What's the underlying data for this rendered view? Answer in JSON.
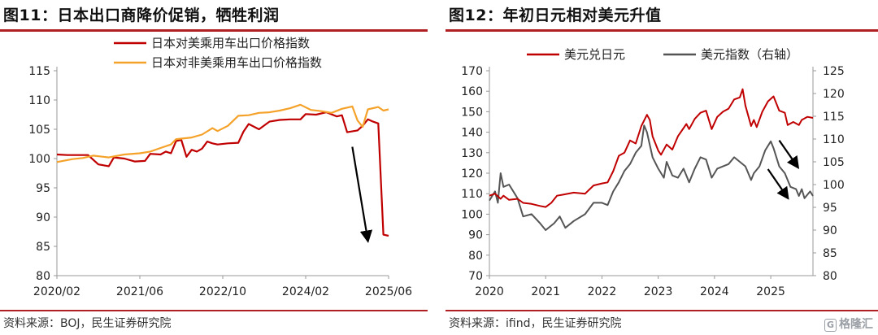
{
  "left": {
    "title": "图11：日本出口商降价促销，牺牲利润",
    "source": "资料来源：BOJ，民生证券研究院",
    "chart_data": {
      "type": "line",
      "ylim": [
        80,
        115
      ],
      "yticks": [
        80,
        85,
        90,
        95,
        100,
        105,
        110,
        115
      ],
      "xticks": [
        "2020/02",
        "2021/06",
        "2022/10",
        "2024/02",
        "2025/06"
      ],
      "xrange": [
        "2020-02",
        "2025-06"
      ],
      "legend": "top",
      "series": [
        {
          "name": "日本对美乘用车出口价格指数",
          "color": "#c00000",
          "points": [
            [
              "2020-02",
              100.7
            ],
            [
              "2020-04",
              100.6
            ],
            [
              "2020-06",
              100.6
            ],
            [
              "2020-08",
              100.6
            ],
            [
              "2020-10",
              99.0
            ],
            [
              "2020-12",
              98.7
            ],
            [
              "2021-01",
              100.2
            ],
            [
              "2021-03",
              100.0
            ],
            [
              "2021-05",
              99.5
            ],
            [
              "2021-07",
              99.6
            ],
            [
              "2021-08",
              100.8
            ],
            [
              "2021-10",
              100.7
            ],
            [
              "2021-11",
              101.2
            ],
            [
              "2021-12",
              100.9
            ],
            [
              "2022-01",
              103.0
            ],
            [
              "2022-02",
              103.2
            ],
            [
              "2022-03",
              100.3
            ],
            [
              "2022-04",
              101.5
            ],
            [
              "2022-05",
              101.2
            ],
            [
              "2022-06",
              101.7
            ],
            [
              "2022-07",
              102.9
            ],
            [
              "2022-08",
              102.6
            ],
            [
              "2022-09",
              102.4
            ],
            [
              "2022-11",
              102.6
            ],
            [
              "2023-01",
              102.7
            ],
            [
              "2023-02",
              104.6
            ],
            [
              "2023-03",
              105.9
            ],
            [
              "2023-05",
              105.0
            ],
            [
              "2023-07",
              106.3
            ],
            [
              "2023-09",
              106.6
            ],
            [
              "2023-11",
              106.7
            ],
            [
              "2024-01",
              106.7
            ],
            [
              "2024-02",
              107.6
            ],
            [
              "2024-04",
              107.5
            ],
            [
              "2024-06",
              107.9
            ],
            [
              "2024-08",
              107.2
            ],
            [
              "2024-09",
              107.4
            ],
            [
              "2024-10",
              104.5
            ],
            [
              "2024-12",
              104.8
            ],
            [
              "2025-01",
              105.6
            ],
            [
              "2025-02",
              106.7
            ],
            [
              "2025-03",
              106.3
            ],
            [
              "2025-04",
              106.0
            ],
            [
              "2025-05",
              87.0
            ],
            [
              "2025-06",
              86.8
            ]
          ]
        },
        {
          "name": "日本对非美乘用车出口价格指数",
          "color": "#f5a22b",
          "points": [
            [
              "2020-02",
              99.4
            ],
            [
              "2020-05",
              99.9
            ],
            [
              "2020-07",
              100.1
            ],
            [
              "2020-09",
              100.5
            ],
            [
              "2020-12",
              100.2
            ],
            [
              "2021-03",
              100.7
            ],
            [
              "2021-06",
              100.9
            ],
            [
              "2021-08",
              101.2
            ],
            [
              "2021-10",
              101.8
            ],
            [
              "2021-12",
              102.4
            ],
            [
              "2022-01",
              103.3
            ],
            [
              "2022-02",
              103.4
            ],
            [
              "2022-04",
              103.6
            ],
            [
              "2022-06",
              104.1
            ],
            [
              "2022-08",
              105.2
            ],
            [
              "2022-09",
              104.7
            ],
            [
              "2022-11",
              105.6
            ],
            [
              "2023-01",
              107.3
            ],
            [
              "2023-03",
              107.4
            ],
            [
              "2023-05",
              107.8
            ],
            [
              "2023-07",
              107.9
            ],
            [
              "2023-09",
              108.2
            ],
            [
              "2023-11",
              108.6
            ],
            [
              "2024-01",
              109.2
            ],
            [
              "2024-03",
              108.3
            ],
            [
              "2024-05",
              108.1
            ],
            [
              "2024-07",
              107.8
            ],
            [
              "2024-09",
              108.5
            ],
            [
              "2024-11",
              108.9
            ],
            [
              "2024-12",
              106.5
            ],
            [
              "2025-01",
              105.4
            ],
            [
              "2025-02",
              108.4
            ],
            [
              "2025-04",
              108.8
            ],
            [
              "2025-05",
              108.2
            ],
            [
              "2025-06",
              108.4
            ]
          ]
        }
      ],
      "arrow": {
        "from": [
          "2024-11",
          102.0
        ],
        "to": [
          "2025-02",
          86.0
        ],
        "color": "#000000"
      }
    }
  },
  "right": {
    "title": "图12：年初日元相对美元升值",
    "source": "资料来源：ifind，民生证券研究院",
    "chart_data": {
      "type": "line",
      "ylim_left": [
        70,
        170
      ],
      "yticks_left": [
        70,
        80,
        90,
        100,
        110,
        120,
        130,
        140,
        150,
        160,
        170
      ],
      "ylim_right": [
        80,
        125
      ],
      "yticks_right": [
        80,
        85,
        90,
        95,
        100,
        105,
        110,
        115,
        120,
        125
      ],
      "xticks": [
        "2020",
        "2021",
        "2022",
        "2023",
        "2024",
        "2025"
      ],
      "xrange": [
        2020.0,
        2025.75
      ],
      "legend": "top",
      "series": [
        {
          "name": "美元兑日元",
          "axis": "left",
          "color": "#c00000",
          "points": [
            [
              2020.0,
              109.0
            ],
            [
              2020.1,
              110.0
            ],
            [
              2020.2,
              107.5
            ],
            [
              2020.25,
              109.0
            ],
            [
              2020.35,
              107.0
            ],
            [
              2020.5,
              107.5
            ],
            [
              2020.6,
              105.5
            ],
            [
              2020.75,
              105.0
            ],
            [
              2020.9,
              104.0
            ],
            [
              2021.0,
              103.5
            ],
            [
              2021.1,
              105.5
            ],
            [
              2021.2,
              109.0
            ],
            [
              2021.3,
              109.5
            ],
            [
              2021.5,
              110.5
            ],
            [
              2021.7,
              110.0
            ],
            [
              2021.85,
              114.0
            ],
            [
              2022.0,
              115.0
            ],
            [
              2022.1,
              115.5
            ],
            [
              2022.2,
              121.0
            ],
            [
              2022.3,
              128.5
            ],
            [
              2022.4,
              130.0
            ],
            [
              2022.5,
              136.0
            ],
            [
              2022.6,
              134.5
            ],
            [
              2022.7,
              143.0
            ],
            [
              2022.8,
              148.5
            ],
            [
              2022.85,
              146.0
            ],
            [
              2022.9,
              138.0
            ],
            [
              2023.0,
              131.0
            ],
            [
              2023.05,
              129.0
            ],
            [
              2023.15,
              134.0
            ],
            [
              2023.25,
              131.5
            ],
            [
              2023.35,
              138.0
            ],
            [
              2023.5,
              144.0
            ],
            [
              2023.55,
              141.5
            ],
            [
              2023.65,
              146.5
            ],
            [
              2023.75,
              149.5
            ],
            [
              2023.85,
              150.5
            ],
            [
              2023.95,
              141.5
            ],
            [
              2024.05,
              147.5
            ],
            [
              2024.15,
              150.0
            ],
            [
              2024.25,
              151.5
            ],
            [
              2024.35,
              156.0
            ],
            [
              2024.45,
              157.0
            ],
            [
              2024.5,
              161.0
            ],
            [
              2024.55,
              153.0
            ],
            [
              2024.65,
              143.0
            ],
            [
              2024.7,
              146.0
            ],
            [
              2024.75,
              142.5
            ],
            [
              2024.85,
              150.0
            ],
            [
              2024.95,
              155.0
            ],
            [
              2025.05,
              157.5
            ],
            [
              2025.15,
              150.5
            ],
            [
              2025.25,
              149.5
            ],
            [
              2025.3,
              143.5
            ],
            [
              2025.4,
              145.0
            ],
            [
              2025.5,
              143.5
            ],
            [
              2025.55,
              146.0
            ],
            [
              2025.65,
              147.5
            ],
            [
              2025.75,
              147.0
            ]
          ]
        },
        {
          "name": "美元指数（右轴）",
          "axis": "right",
          "color": "#555555",
          "points": [
            [
              2020.0,
              96.5
            ],
            [
              2020.1,
              98.5
            ],
            [
              2020.15,
              96.0
            ],
            [
              2020.2,
              102.5
            ],
            [
              2020.25,
              99.5
            ],
            [
              2020.35,
              100.0
            ],
            [
              2020.5,
              97.0
            ],
            [
              2020.6,
              93.0
            ],
            [
              2020.75,
              93.5
            ],
            [
              2020.9,
              91.5
            ],
            [
              2021.0,
              90.0
            ],
            [
              2021.15,
              91.5
            ],
            [
              2021.25,
              93.0
            ],
            [
              2021.35,
              90.5
            ],
            [
              2021.5,
              92.0
            ],
            [
              2021.7,
              93.5
            ],
            [
              2021.85,
              96.0
            ],
            [
              2022.0,
              96.0
            ],
            [
              2022.1,
              95.5
            ],
            [
              2022.2,
              98.5
            ],
            [
              2022.3,
              100.5
            ],
            [
              2022.4,
              103.0
            ],
            [
              2022.5,
              104.5
            ],
            [
              2022.6,
              107.0
            ],
            [
              2022.7,
              108.5
            ],
            [
              2022.75,
              113.0
            ],
            [
              2022.8,
              111.5
            ],
            [
              2022.9,
              106.0
            ],
            [
              2023.0,
              103.5
            ],
            [
              2023.1,
              101.5
            ],
            [
              2023.15,
              105.0
            ],
            [
              2023.25,
              102.0
            ],
            [
              2023.35,
              101.5
            ],
            [
              2023.45,
              103.5
            ],
            [
              2023.55,
              100.5
            ],
            [
              2023.65,
              103.5
            ],
            [
              2023.75,
              106.0
            ],
            [
              2023.85,
              105.5
            ],
            [
              2023.95,
              101.5
            ],
            [
              2024.05,
              103.5
            ],
            [
              2024.15,
              104.0
            ],
            [
              2024.25,
              104.5
            ],
            [
              2024.35,
              106.0
            ],
            [
              2024.45,
              105.0
            ],
            [
              2024.55,
              104.0
            ],
            [
              2024.65,
              101.0
            ],
            [
              2024.7,
              102.5
            ],
            [
              2024.8,
              104.0
            ],
            [
              2024.9,
              107.5
            ],
            [
              2025.0,
              109.5
            ],
            [
              2025.05,
              108.0
            ],
            [
              2025.15,
              104.0
            ],
            [
              2025.25,
              102.5
            ],
            [
              2025.35,
              99.5
            ],
            [
              2025.45,
              99.0
            ],
            [
              2025.5,
              97.5
            ],
            [
              2025.55,
              99.0
            ],
            [
              2025.6,
              97.0
            ],
            [
              2025.7,
              98.5
            ],
            [
              2025.75,
              97.5
            ]
          ]
        }
      ],
      "arrows": [
        {
          "from": [
            2025.15,
            136
          ],
          "to": [
            2025.48,
            123
          ],
          "color": "#000000"
        },
        {
          "from": [
            2024.95,
            122
          ],
          "to": [
            2025.3,
            108
          ],
          "color": "#000000"
        }
      ]
    }
  },
  "watermark": {
    "glyph": "G",
    "text": "格隆汇"
  }
}
